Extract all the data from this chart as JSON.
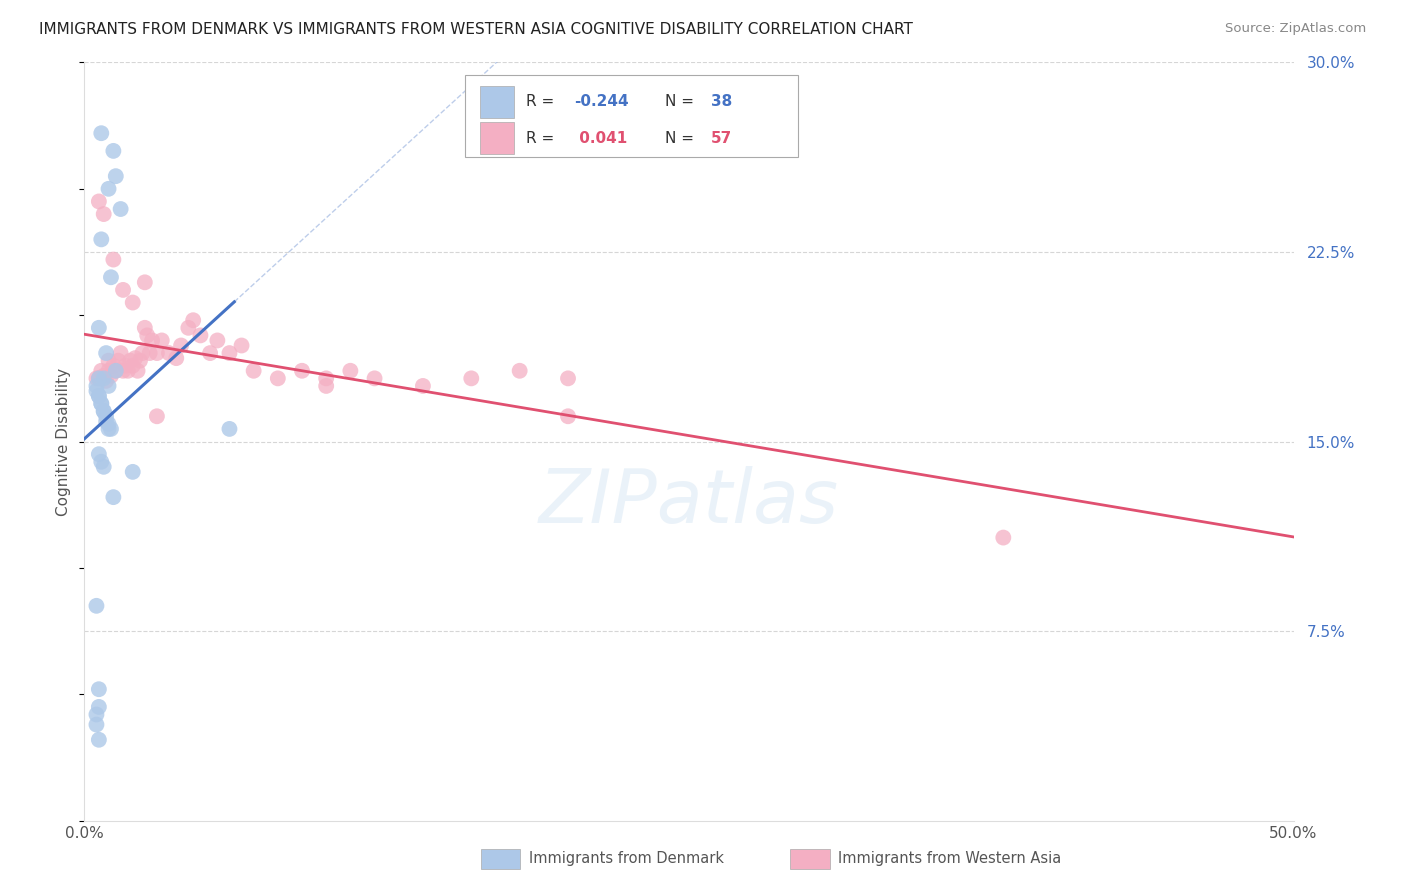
{
  "title": "IMMIGRANTS FROM DENMARK VS IMMIGRANTS FROM WESTERN ASIA COGNITIVE DISABILITY CORRELATION CHART",
  "source": "Source: ZipAtlas.com",
  "ylabel": "Cognitive Disability",
  "xlim": [
    0.0,
    0.5
  ],
  "ylim": [
    0.0,
    0.3
  ],
  "x_tick_positions": [
    0.0,
    0.1,
    0.2,
    0.3,
    0.4,
    0.5
  ],
  "x_tick_labels": [
    "0.0%",
    "",
    "",
    "",
    "",
    "50.0%"
  ],
  "y_tick_positions": [
    0.075,
    0.15,
    0.225,
    0.3
  ],
  "y_tick_labels": [
    "7.5%",
    "15.0%",
    "22.5%",
    "30.0%"
  ],
  "color_denmark": "#adc8e8",
  "color_western_asia": "#f4afc3",
  "color_denmark_line": "#4472c4",
  "color_western_asia_line": "#e05070",
  "color_denmark_text": "#4472c4",
  "color_western_asia_text": "#e05070",
  "grid_color": "#cccccc",
  "background_color": "#ffffff",
  "watermark": "ZIPatlas",
  "denmark_x": [
    0.007,
    0.012,
    0.013,
    0.01,
    0.015,
    0.007,
    0.011,
    0.006,
    0.009,
    0.013,
    0.008,
    0.01,
    0.005,
    0.006,
    0.007,
    0.008,
    0.009,
    0.01,
    0.011,
    0.006,
    0.005,
    0.006,
    0.007,
    0.008,
    0.009,
    0.01,
    0.006,
    0.007,
    0.008,
    0.02,
    0.005,
    0.006,
    0.005,
    0.006,
    0.005,
    0.012,
    0.006,
    0.06
  ],
  "denmark_y": [
    0.272,
    0.265,
    0.255,
    0.25,
    0.242,
    0.23,
    0.215,
    0.195,
    0.185,
    0.178,
    0.175,
    0.172,
    0.17,
    0.168,
    0.165,
    0.162,
    0.16,
    0.157,
    0.155,
    0.175,
    0.172,
    0.168,
    0.165,
    0.162,
    0.158,
    0.155,
    0.145,
    0.142,
    0.14,
    0.138,
    0.085,
    0.052,
    0.042,
    0.032,
    0.038,
    0.128,
    0.045,
    0.155
  ],
  "western_asia_x": [
    0.005,
    0.006,
    0.007,
    0.008,
    0.009,
    0.01,
    0.01,
    0.011,
    0.012,
    0.013,
    0.014,
    0.015,
    0.016,
    0.017,
    0.018,
    0.019,
    0.02,
    0.021,
    0.022,
    0.023,
    0.024,
    0.025,
    0.026,
    0.027,
    0.028,
    0.03,
    0.032,
    0.035,
    0.038,
    0.04,
    0.043,
    0.045,
    0.048,
    0.052,
    0.055,
    0.06,
    0.065,
    0.07,
    0.08,
    0.09,
    0.1,
    0.11,
    0.12,
    0.14,
    0.16,
    0.18,
    0.2,
    0.38,
    0.006,
    0.008,
    0.012,
    0.016,
    0.02,
    0.025,
    0.03,
    0.2,
    0.1
  ],
  "western_asia_y": [
    0.175,
    0.175,
    0.178,
    0.176,
    0.174,
    0.182,
    0.178,
    0.176,
    0.18,
    0.178,
    0.182,
    0.185,
    0.178,
    0.18,
    0.178,
    0.182,
    0.18,
    0.183,
    0.178,
    0.182,
    0.185,
    0.195,
    0.192,
    0.185,
    0.19,
    0.185,
    0.19,
    0.185,
    0.183,
    0.188,
    0.195,
    0.198,
    0.192,
    0.185,
    0.19,
    0.185,
    0.188,
    0.178,
    0.175,
    0.178,
    0.172,
    0.178,
    0.175,
    0.172,
    0.175,
    0.178,
    0.175,
    0.112,
    0.245,
    0.24,
    0.222,
    0.21,
    0.205,
    0.213,
    0.16,
    0.16,
    0.175
  ]
}
